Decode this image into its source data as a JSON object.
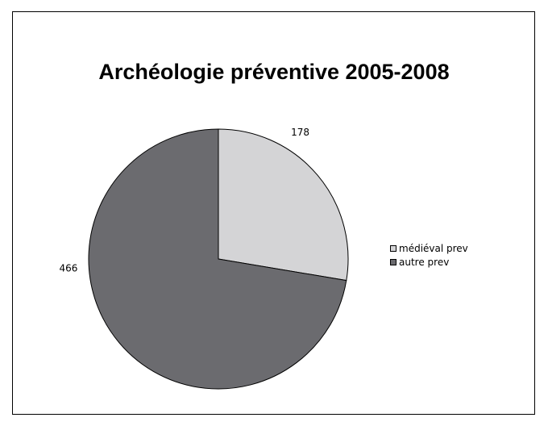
{
  "chart_data": {
    "type": "pie",
    "title": "Archéologie préventive 2005-2008",
    "categories": [
      "médiéval prev",
      "autre prev"
    ],
    "values": [
      178,
      466
    ],
    "colors": [
      "#d4d4d6",
      "#6b6b6f"
    ],
    "data_labels": [
      "178",
      "466"
    ],
    "legend_placement": "right",
    "start_angle": "top",
    "direction": "clockwise"
  }
}
